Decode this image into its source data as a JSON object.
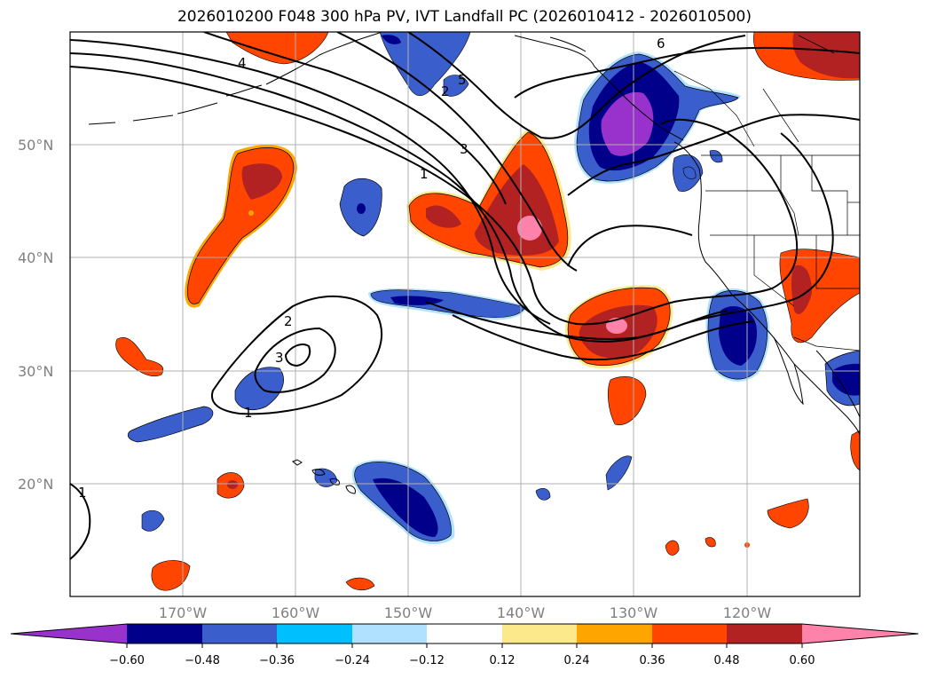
{
  "title": "2026010200 F048 300 hPa PV, IVT Landfall PC (2026010412 - 2026010500)",
  "map": {
    "projection": "plate-carree",
    "lon_range": [
      -180,
      -110
    ],
    "lat_range": [
      10,
      60
    ],
    "gridlines": true,
    "lat_labels": [
      "50°N",
      "40°N",
      "30°N",
      "20°N"
    ],
    "lon_labels": [
      "170°W",
      "160°W",
      "150°W",
      "140°W",
      "130°W",
      "120°W"
    ]
  },
  "contours": {
    "variable": "300 hPa PV",
    "labels": [
      "1",
      "2",
      "3",
      "4",
      "5",
      "6",
      "1",
      "2",
      "3",
      "1"
    ]
  },
  "colorbar": {
    "ticks": [
      "−0.60",
      "−0.48",
      "−0.36",
      "−0.24",
      "−0.12",
      "0.12",
      "0.24",
      "0.36",
      "0.48",
      "0.60"
    ],
    "colors": [
      "#9932cc",
      "#00008b",
      "#3a5fcd",
      "#00bfff",
      "#b0e2ff",
      "#ffffff",
      "#fbe98c",
      "#ffa500",
      "#ff4500",
      "#b22222",
      "#ff82ab"
    ],
    "extend": "both"
  }
}
